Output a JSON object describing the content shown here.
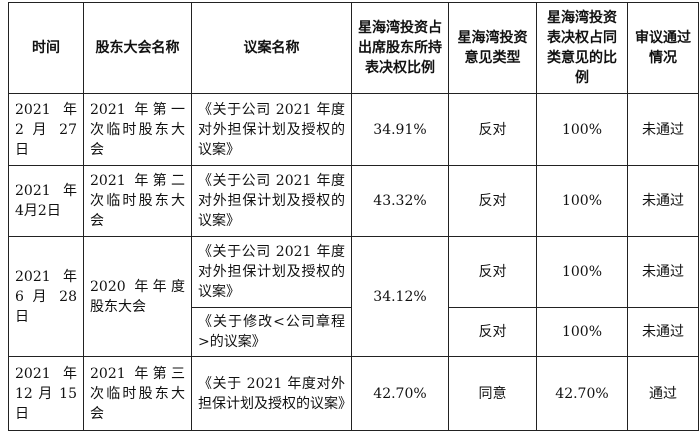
{
  "table": {
    "headers": {
      "time": "时间",
      "meeting": "股东大会名称",
      "proposal": "议案名称",
      "attend_ratio": "星海湾投资占出席股东所持表决权比例",
      "opinion_type": "星海湾投资意见类型",
      "same_type_ratio": "星海湾投资表决权占同类意见的比例",
      "result": "审议通过情况"
    },
    "rows": [
      {
        "time": "2021 年2 月 27 日",
        "meeting": "2021 年第一次临时股东大会",
        "proposal": "《关于公司 2021 年度对外担保计划及授权的议案》",
        "attend_ratio": "34.91%",
        "opinion_type": "反对",
        "same_type_ratio": "100%",
        "result": "未通过"
      },
      {
        "time": "2021 年4月2日",
        "meeting": "2021 年第二次临时股东大会",
        "proposal": "《关于公司 2021 年度对外担保计划及授权的议案》",
        "attend_ratio": "43.32%",
        "opinion_type": "反对",
        "same_type_ratio": "100%",
        "result": "未通过"
      },
      {
        "time": "2021 年6 月 28日",
        "meeting": "2020 年年度股东大会",
        "attend_ratio": "34.12%",
        "proposals": [
          {
            "proposal": "《关于公司 2021 年度对外担保计划及授权的议案》",
            "opinion_type": "反对",
            "same_type_ratio": "100%",
            "result": "未通过"
          },
          {
            "proposal": "《关于修改<公司章程>的议案》",
            "opinion_type": "反对",
            "same_type_ratio": "100%",
            "result": "未通过"
          }
        ]
      },
      {
        "time": "2021 年12 月 15日",
        "meeting": "2021 年第三次临时股东大会",
        "proposal": "《关于 2021 年度对外担保计划及授权的议案》",
        "attend_ratio": "42.70%",
        "opinion_type": "同意",
        "same_type_ratio": "42.70%",
        "result": "通过"
      }
    ]
  }
}
